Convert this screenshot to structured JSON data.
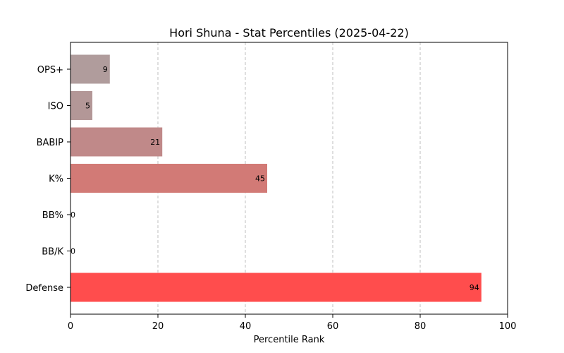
{
  "chart_data": {
    "type": "bar",
    "orientation": "horizontal",
    "title": "Hori Shuna - Stat Percentiles (2025-04-22)",
    "xlabel": "Percentile Rank",
    "ylabel": "",
    "xlim": [
      0,
      100
    ],
    "xticks": [
      0,
      20,
      40,
      60,
      80,
      100
    ],
    "grid": "x-dashed",
    "categories": [
      "OPS+",
      "ISO",
      "BABIP",
      "K%",
      "BB%",
      "BB/K",
      "Defense"
    ],
    "values": [
      9,
      5,
      21,
      45,
      0,
      0,
      94
    ],
    "colors": [
      "#b09c9c",
      "#b39797",
      "#c08989",
      "#d27a76",
      "#ababab",
      "#ababab",
      "#ff4d4d"
    ]
  }
}
